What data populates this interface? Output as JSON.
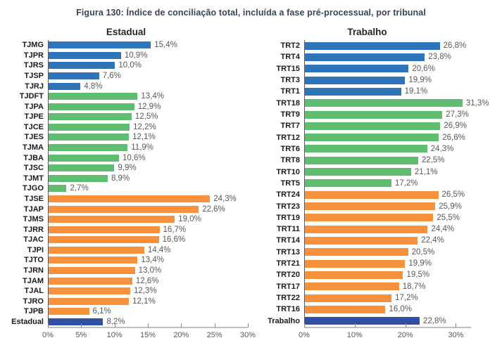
{
  "figure": {
    "title": "Figura 130: Índice de conciliação total, incluída a fase pré-processual, por tribunal"
  },
  "colors": {
    "blue": "#2E74B8",
    "green": "#5EBD70",
    "orange": "#F7913D",
    "navy": "#3150A5",
    "axis_line": "#BFBFBF",
    "tick_text": "#595959"
  },
  "chart_data": [
    {
      "type": "bar",
      "orientation": "horizontal",
      "title": "Estadual",
      "xlabel": "",
      "ylabel": "",
      "xlim": [
        0,
        30
      ],
      "grid": false,
      "ticks": [
        {
          "v": 0,
          "label": "0%"
        },
        {
          "v": 5,
          "label": "5%"
        },
        {
          "v": 10,
          "label": "10%"
        },
        {
          "v": 15,
          "label": "15%"
        },
        {
          "v": 20,
          "label": "20%"
        },
        {
          "v": 25,
          "label": "25%"
        },
        {
          "v": 30,
          "label": "30%"
        }
      ],
      "bars": [
        {
          "label": "TJMG",
          "value": 15.4,
          "display": "15,4%",
          "color": "blue"
        },
        {
          "label": "TJPR",
          "value": 10.9,
          "display": "10,9%",
          "color": "blue"
        },
        {
          "label": "TJRS",
          "value": 10.0,
          "display": "10,0%",
          "color": "blue"
        },
        {
          "label": "TJSP",
          "value": 7.6,
          "display": "7,6%",
          "color": "blue"
        },
        {
          "label": "TJRJ",
          "value": 4.8,
          "display": "4,8%",
          "color": "blue"
        },
        {
          "label": "TJDFT",
          "value": 13.4,
          "display": "13,4%",
          "color": "green"
        },
        {
          "label": "TJPA",
          "value": 12.9,
          "display": "12,9%",
          "color": "green"
        },
        {
          "label": "TJPE",
          "value": 12.5,
          "display": "12,5%",
          "color": "green"
        },
        {
          "label": "TJCE",
          "value": 12.2,
          "display": "12,2%",
          "color": "green"
        },
        {
          "label": "TJES",
          "value": 12.1,
          "display": "12,1%",
          "color": "green"
        },
        {
          "label": "TJMA",
          "value": 11.9,
          "display": "11,9%",
          "color": "green"
        },
        {
          "label": "TJBA",
          "value": 10.6,
          "display": "10,6%",
          "color": "green"
        },
        {
          "label": "TJSC",
          "value": 9.9,
          "display": "9,9%",
          "color": "green"
        },
        {
          "label": "TJMT",
          "value": 8.9,
          "display": "8,9%",
          "color": "green"
        },
        {
          "label": "TJGO",
          "value": 2.7,
          "display": "2,7%",
          "color": "green"
        },
        {
          "label": "TJSE",
          "value": 24.3,
          "display": "24,3%",
          "color": "orange"
        },
        {
          "label": "TJAP",
          "value": 22.6,
          "display": "22,6%",
          "color": "orange"
        },
        {
          "label": "TJMS",
          "value": 19.0,
          "display": "19,0%",
          "color": "orange"
        },
        {
          "label": "TJRR",
          "value": 16.7,
          "display": "16,7%",
          "color": "orange"
        },
        {
          "label": "TJAC",
          "value": 16.6,
          "display": "16,6%",
          "color": "orange"
        },
        {
          "label": "TJPI",
          "value": 14.4,
          "display": "14,4%",
          "color": "orange"
        },
        {
          "label": "TJTO",
          "value": 13.4,
          "display": "13,4%",
          "color": "orange"
        },
        {
          "label": "TJRN",
          "value": 13.0,
          "display": "13,0%",
          "color": "orange"
        },
        {
          "label": "TJAM",
          "value": 12.6,
          "display": "12,6%",
          "color": "orange"
        },
        {
          "label": "TJAL",
          "value": 12.3,
          "display": "12,3%",
          "color": "orange"
        },
        {
          "label": "TJRO",
          "value": 12.1,
          "display": "12,1%",
          "color": "orange"
        },
        {
          "label": "TJPB",
          "value": 6.1,
          "display": "6,1%",
          "color": "orange"
        },
        {
          "label": "Estadual",
          "value": 8.2,
          "display": "8,2%",
          "color": "navy"
        }
      ]
    },
    {
      "type": "bar",
      "orientation": "horizontal",
      "title": "Trabalho",
      "xlabel": "",
      "ylabel": "",
      "xlim": [
        0,
        33
      ],
      "grid": false,
      "ticks": [
        {
          "v": 0,
          "label": "0%"
        },
        {
          "v": 10,
          "label": "10%"
        },
        {
          "v": 20,
          "label": "20%"
        },
        {
          "v": 30,
          "label": "30%"
        }
      ],
      "bars": [
        {
          "label": "TRT2",
          "value": 26.8,
          "display": "26,8%",
          "color": "blue"
        },
        {
          "label": "TRT4",
          "value": 23.8,
          "display": "23,8%",
          "color": "blue"
        },
        {
          "label": "TRT15",
          "value": 20.6,
          "display": "20,6%",
          "color": "blue"
        },
        {
          "label": "TRT3",
          "value": 19.9,
          "display": "19,9%",
          "color": "blue"
        },
        {
          "label": "TRT1",
          "value": 19.1,
          "display": "19,1%",
          "color": "blue"
        },
        {
          "label": "TRT18",
          "value": 31.3,
          "display": "31,3%",
          "color": "green"
        },
        {
          "label": "TRT9",
          "value": 27.3,
          "display": "27,3%",
          "color": "green"
        },
        {
          "label": "TRT7",
          "value": 26.9,
          "display": "26,9%",
          "color": "green"
        },
        {
          "label": "TRT12",
          "value": 26.6,
          "display": "26,6%",
          "color": "green"
        },
        {
          "label": "TRT6",
          "value": 24.3,
          "display": "24,3%",
          "color": "green"
        },
        {
          "label": "TRT8",
          "value": 22.5,
          "display": "22,5%",
          "color": "green"
        },
        {
          "label": "TRT10",
          "value": 21.1,
          "display": "21,1%",
          "color": "green"
        },
        {
          "label": "TRT5",
          "value": 17.2,
          "display": "17,2%",
          "color": "green"
        },
        {
          "label": "TRT24",
          "value": 26.5,
          "display": "26,5%",
          "color": "orange"
        },
        {
          "label": "TRT23",
          "value": 25.9,
          "display": "25,9%",
          "color": "orange"
        },
        {
          "label": "TRT19",
          "value": 25.5,
          "display": "25,5%",
          "color": "orange"
        },
        {
          "label": "TRT11",
          "value": 24.4,
          "display": "24,4%",
          "color": "orange"
        },
        {
          "label": "TRT14",
          "value": 22.4,
          "display": "22,4%",
          "color": "orange"
        },
        {
          "label": "TRT13",
          "value": 20.5,
          "display": "20,5%",
          "color": "orange"
        },
        {
          "label": "TRT21",
          "value": 19.9,
          "display": "19,9%",
          "color": "orange"
        },
        {
          "label": "TRT20",
          "value": 19.5,
          "display": "19,5%",
          "color": "orange"
        },
        {
          "label": "TRT17",
          "value": 18.7,
          "display": "18,7%",
          "color": "orange"
        },
        {
          "label": "TRT22",
          "value": 17.2,
          "display": "17,2%",
          "color": "orange"
        },
        {
          "label": "TRT16",
          "value": 16.0,
          "display": "16,0%",
          "color": "orange"
        },
        {
          "label": "Trabalho",
          "value": 22.8,
          "display": "22,8%",
          "color": "navy"
        }
      ]
    }
  ]
}
